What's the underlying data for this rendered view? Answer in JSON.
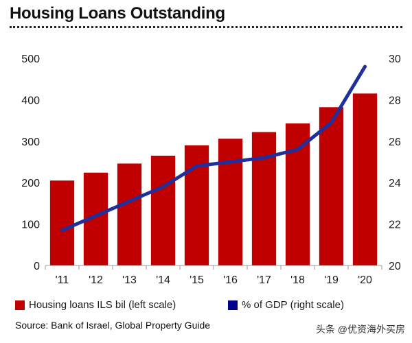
{
  "title": "Housing Loans Outstanding",
  "source": "Source: Bank of Israel, Global Property Guide",
  "watermark": "头条 @优资海外买房",
  "colors": {
    "bar": "#c00000",
    "line": "#1f2f9b",
    "legend_line_swatch": "#00008b"
  },
  "chart_data": {
    "type": "bar",
    "categories": [
      "'11",
      "'12",
      "'13",
      "'14",
      "'15",
      "'16",
      "'17",
      "'18",
      "'19",
      "'20"
    ],
    "series": [
      {
        "name": "Housing loans ILS bil (left scale)",
        "type": "bar",
        "axis": "left",
        "values": [
          205,
          224,
          246,
          265,
          290,
          306,
          322,
          343,
          382,
          415
        ]
      },
      {
        "name": "% of GDP (right scale)",
        "type": "line",
        "axis": "right",
        "values": [
          21.7,
          22.4,
          23.1,
          23.8,
          24.8,
          25.0,
          25.2,
          25.6,
          26.9,
          29.6
        ]
      }
    ],
    "left_axis": {
      "ylim": [
        0,
        500
      ],
      "ticks": [
        0,
        100,
        200,
        300,
        400,
        500
      ]
    },
    "right_axis": {
      "ylim": [
        20,
        30
      ],
      "ticks": [
        20,
        22,
        24,
        26,
        28,
        30
      ]
    },
    "grid": false,
    "legend_position": "bottom"
  }
}
